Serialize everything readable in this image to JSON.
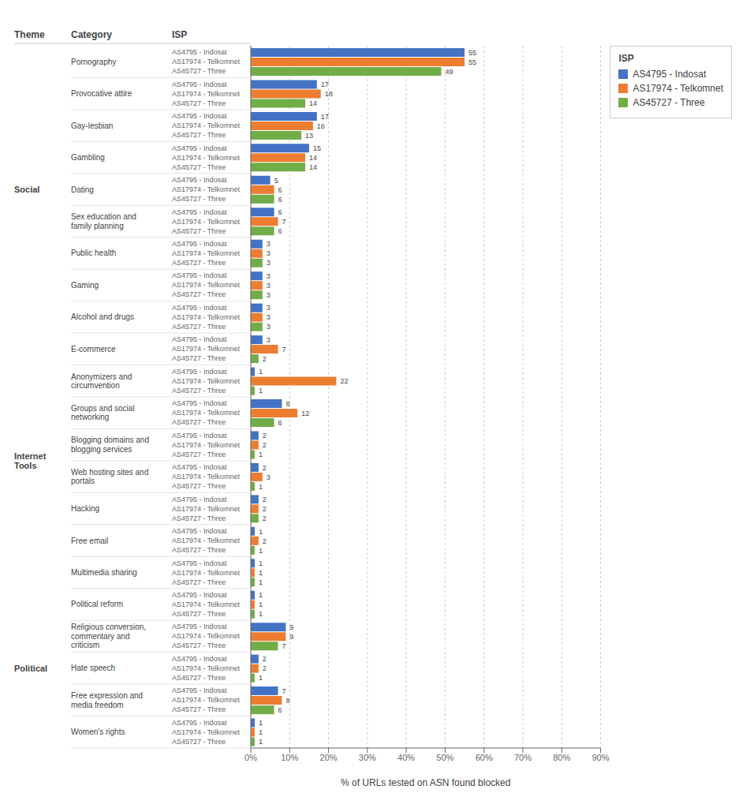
{
  "chart_data": {
    "type": "bar",
    "orientation": "horizontal",
    "column_headers": [
      "Theme",
      "Category",
      "ISP"
    ],
    "themes": [
      "Social",
      "Social",
      "Social",
      "Social",
      "Social",
      "Social",
      "Social",
      "Social",
      "Social",
      "Internet\nTools",
      "Internet\nTools",
      "Internet\nTools",
      "Internet\nTools",
      "Internet\nTools",
      "Internet\nTools",
      "Internet\nTools",
      "Internet\nTools",
      "Political",
      "Political",
      "Political",
      "Political",
      "Political"
    ],
    "categories": [
      "Pornography",
      "Provocative attire",
      "Gay-lesbian",
      "Gambling",
      "Dating",
      "Sex education and\nfamily planning",
      "Public health",
      "Gaming",
      "Alcohol and drugs",
      "E-commerce",
      "Anonymizers and\ncircumvention",
      "Groups and social\nnetworking",
      "Blogging domains and\nblogging services",
      "Web hosting sites and\nportals",
      "Hacking",
      "Free email",
      "Multimedia sharing",
      "Political reform",
      "Religious conversion,\ncommentary and\ncriticism",
      "Hate speech",
      "Free expression and\nmedia freedom",
      "Women's rights"
    ],
    "series": [
      {
        "name": "AS4795 - Indosat",
        "color": "#4472C4",
        "values": [
          55,
          17,
          17,
          15,
          5,
          6,
          3,
          3,
          3,
          3,
          1,
          8,
          2,
          2,
          2,
          1,
          1,
          1,
          9,
          2,
          7,
          1
        ]
      },
      {
        "name": "AS17974 - Telkomnet",
        "color": "#ED7D31",
        "values": [
          55,
          18,
          16,
          14,
          6,
          7,
          3,
          3,
          3,
          7,
          22,
          12,
          2,
          3,
          2,
          2,
          1,
          1,
          9,
          2,
          8,
          1
        ]
      },
      {
        "name": "AS45727 - Three",
        "color": "#70AD47",
        "values": [
          49,
          14,
          13,
          14,
          6,
          6,
          3,
          3,
          3,
          2,
          1,
          6,
          1,
          1,
          2,
          1,
          1,
          1,
          7,
          1,
          6,
          1
        ]
      }
    ],
    "xlabel": "% of URLs tested on ASN found blocked",
    "xlim": [
      0,
      90
    ],
    "xticks": [
      {
        "value": 0,
        "label": "0%"
      },
      {
        "value": 10,
        "label": "10%"
      },
      {
        "value": 20,
        "label": "20%"
      },
      {
        "value": 30,
        "label": "30%"
      },
      {
        "value": 40,
        "label": "40%"
      },
      {
        "value": 50,
        "label": "50%"
      },
      {
        "value": 60,
        "label": "60%"
      },
      {
        "value": 70,
        "label": "70%"
      },
      {
        "value": 80,
        "label": "80%"
      },
      {
        "value": 90,
        "label": "90%"
      }
    ],
    "grid": true,
    "data_labels": true,
    "legend": "right",
    "legend_title": "ISP"
  }
}
